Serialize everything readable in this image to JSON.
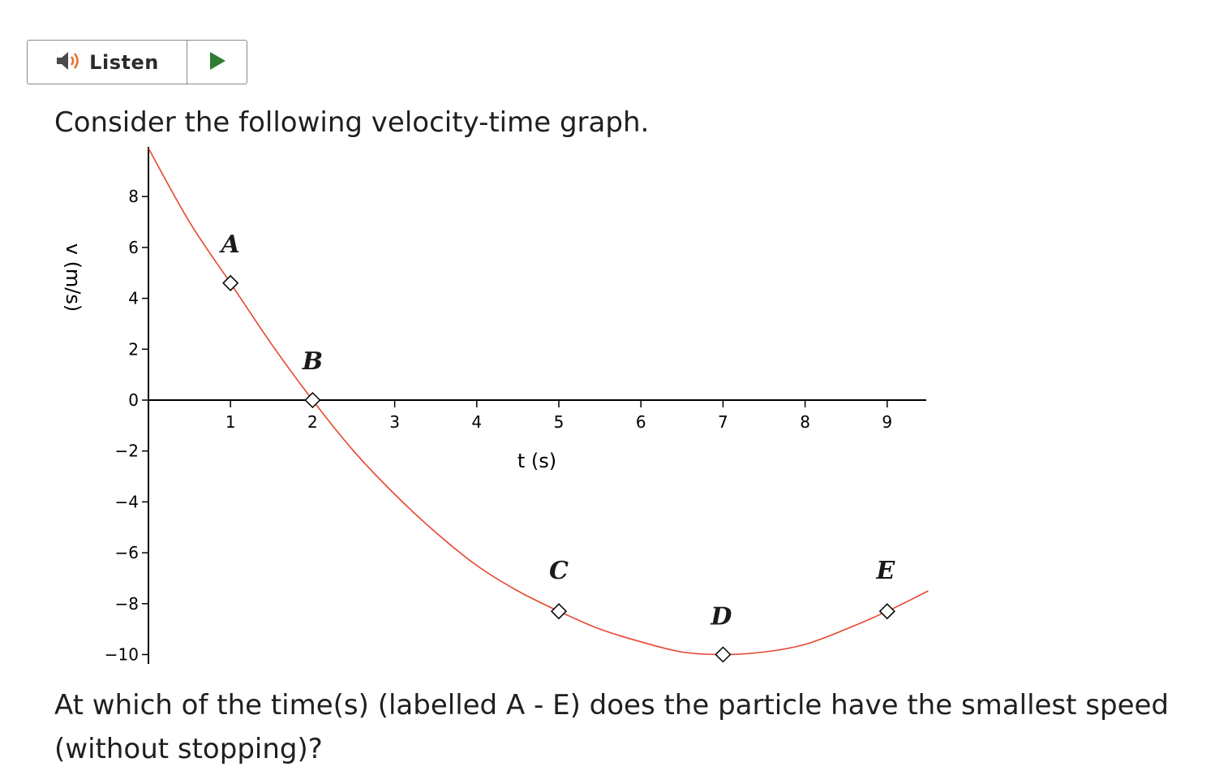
{
  "listen": {
    "label": "Listen",
    "speaker_icon": "speaker-icon",
    "play_icon": "play-icon",
    "speaker_color": "#4a4a4a",
    "wave_color": "#e8702a",
    "play_color": "#2e7d32"
  },
  "question": {
    "intro": "Consider the following velocity-time graph.",
    "text": "At which of the time(s) (labelled A - E) does the particle have the smallest speed (without stopping)?"
  },
  "chart_data": {
    "type": "line",
    "title": "",
    "xlabel": "t  (s)",
    "ylabel": "v  (m/s)",
    "xlim": [
      0,
      9.5
    ],
    "ylim": [
      -10,
      10
    ],
    "x_ticks": [
      1,
      2,
      3,
      4,
      5,
      6,
      7,
      8,
      9
    ],
    "y_ticks": [
      8,
      6,
      4,
      2,
      0,
      -2,
      -4,
      -6,
      -8,
      -10
    ],
    "y_tick_labels": [
      "8",
      "6",
      "4",
      "2",
      "0",
      "−2",
      "−4",
      "−6",
      "−8",
      "−10"
    ],
    "grid": false,
    "line_color": "#e8462e",
    "series": [
      {
        "x": [
          0,
          0.5,
          1,
          1.5,
          2,
          2.5,
          3,
          3.5,
          4,
          4.5,
          5,
          5.5,
          6,
          6.5,
          7,
          7.5,
          8,
          8.5,
          9,
          9.5
        ],
        "values": [
          9.9,
          7.0,
          4.6,
          2.2,
          0.0,
          -2.0,
          -3.7,
          -5.2,
          -6.5,
          -7.5,
          -8.3,
          -9.0,
          -9.5,
          -9.9,
          -10.0,
          -9.9,
          -9.6,
          -9.0,
          -8.3,
          -7.5
        ]
      }
    ],
    "points": [
      {
        "label": "A",
        "x": 1,
        "y": 4.6
      },
      {
        "label": "B",
        "x": 2,
        "y": 0
      },
      {
        "label": "C",
        "x": 5,
        "y": -8.3
      },
      {
        "label": "D",
        "x": 7,
        "y": -10
      },
      {
        "label": "E",
        "x": 9,
        "y": -8.3
      }
    ]
  }
}
